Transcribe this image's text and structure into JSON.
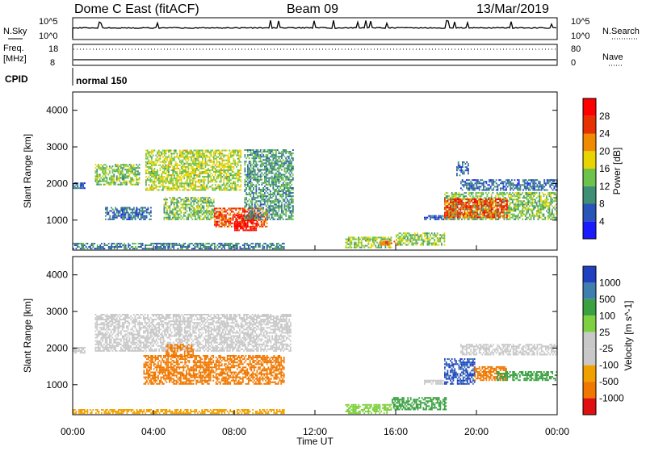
{
  "header": {
    "title": "Dome C East (fitACF)",
    "beam": "Beam 09",
    "date": "13/Mar/2019"
  },
  "aux": {
    "nsky_label": "N.Sky",
    "nsky_top": "10^5",
    "nsky_bottom": "10^0",
    "nsearch_label": "N.Search",
    "nsearch_top": "10^5",
    "nsearch_bottom": "10^0",
    "freq_label": "Freq.",
    "freq_unit": "[MHz]",
    "freq_top": "18",
    "freq_bottom": "8",
    "nave_label": "Nave",
    "nave_top": "80",
    "nave_bottom": "0",
    "cpid_label": "CPID",
    "cpid_value": "normal 150"
  },
  "chart_data": [
    {
      "type": "heatmap",
      "name": "power",
      "ylabel": "Slant Range [km]",
      "ylim": [
        180,
        4500
      ],
      "xlim": [
        "00:00",
        "24:00"
      ],
      "y_ticks": [
        "1000",
        "2000",
        "3000",
        "4000"
      ],
      "colorbar_label": "Power [dB]",
      "colorbar_ticks": [
        "4",
        "8",
        "12",
        "16",
        "20",
        "24",
        "28"
      ],
      "colorbar_range": [
        0,
        30
      ],
      "colors": [
        "#1a1aff",
        "#2a55b8",
        "#3f8f74",
        "#6cc24a",
        "#e8d400",
        "#f08a00",
        "#e63200",
        "#ff0000"
      ],
      "regions": [
        {
          "t": [
            0.0,
            0.6
          ],
          "r": [
            1850,
            2000
          ],
          "v": 6
        },
        {
          "t": [
            1.1,
            3.3
          ],
          "r": [
            1950,
            2500
          ],
          "v": 13
        },
        {
          "t": [
            1.6,
            3.9
          ],
          "r": [
            1000,
            1350
          ],
          "v": 7
        },
        {
          "t": [
            3.6,
            8.3
          ],
          "r": [
            1800,
            2900
          ],
          "v": 15
        },
        {
          "t": [
            4.5,
            7.0
          ],
          "r": [
            1000,
            1600
          ],
          "v": 13
        },
        {
          "t": [
            7.0,
            9.6
          ],
          "r": [
            800,
            1300
          ],
          "v": 24
        },
        {
          "t": [
            8.0,
            9.1
          ],
          "r": [
            700,
            1150
          ],
          "v": 29
        },
        {
          "t": [
            8.5,
            10.9
          ],
          "r": [
            1000,
            2900
          ],
          "v": 10
        },
        {
          "t": [
            0.0,
            10.5
          ],
          "r": [
            200,
            380
          ],
          "v": 8
        },
        {
          "t": [
            13.5,
            15.8
          ],
          "r": [
            230,
            520
          ],
          "v": 14
        },
        {
          "t": [
            15.2,
            16.3
          ],
          "r": [
            300,
            400
          ],
          "v": 22
        },
        {
          "t": [
            16.0,
            18.4
          ],
          "r": [
            300,
            650
          ],
          "v": 14
        },
        {
          "t": [
            17.4,
            18.5
          ],
          "r": [
            1000,
            1120
          ],
          "v": 5
        },
        {
          "t": [
            18.4,
            24.0
          ],
          "r": [
            1000,
            1750
          ],
          "v": 13
        },
        {
          "t": [
            18.4,
            21.5
          ],
          "r": [
            1050,
            1550
          ],
          "v": 24
        },
        {
          "t": [
            19.2,
            24.0
          ],
          "r": [
            1800,
            2100
          ],
          "v": 7
        },
        {
          "t": [
            19.0,
            19.6
          ],
          "r": [
            2200,
            2600
          ],
          "v": 7
        }
      ]
    },
    {
      "type": "heatmap",
      "name": "velocity",
      "ylabel": "Slant Range [km]",
      "xlabel": "Time UT",
      "ylim": [
        180,
        4500
      ],
      "xlim": [
        "00:00",
        "24:00"
      ],
      "x_ticks": [
        "00:00",
        "04:00",
        "08:00",
        "12:00",
        "16:00",
        "20:00",
        "00:00"
      ],
      "y_ticks": [
        "1000",
        "2000",
        "3000",
        "4000"
      ],
      "colorbar_label": "Velocity [m s^-1]",
      "colorbar_ticks": [
        "1000",
        "500",
        "100",
        "25",
        "-25",
        "-100",
        "-500",
        "-1000"
      ],
      "colors": [
        "#2040c0",
        "#3f7fb0",
        "#3aa040",
        "#7fd040",
        "#c8c8c8",
        "#c8c8c8",
        "#f0a000",
        "#f07800",
        "#e01010"
      ],
      "regions": [
        {
          "t": [
            0.0,
            0.6
          ],
          "r": [
            1850,
            2000
          ],
          "v": 0
        },
        {
          "t": [
            1.1,
            10.8
          ],
          "r": [
            1900,
            2900
          ],
          "v": 0
        },
        {
          "t": [
            3.5,
            10.5
          ],
          "r": [
            1000,
            1800
          ],
          "v": -300
        },
        {
          "t": [
            4.6,
            6.0
          ],
          "r": [
            1750,
            2100
          ],
          "v": -300
        },
        {
          "t": [
            0.0,
            10.5
          ],
          "r": [
            200,
            320
          ],
          "v": -50
        },
        {
          "t": [
            13.5,
            15.8
          ],
          "r": [
            200,
            450
          ],
          "v": 60
        },
        {
          "t": [
            15.8,
            18.5
          ],
          "r": [
            300,
            650
          ],
          "v": 150
        },
        {
          "t": [
            17.4,
            18.5
          ],
          "r": [
            1000,
            1100
          ],
          "v": 0
        },
        {
          "t": [
            18.4,
            19.9
          ],
          "r": [
            1000,
            1700
          ],
          "v": 800
        },
        {
          "t": [
            19.9,
            21.5
          ],
          "r": [
            1100,
            1500
          ],
          "v": -300
        },
        {
          "t": [
            21.0,
            24.0
          ],
          "r": [
            1100,
            1350
          ],
          "v": 150
        },
        {
          "t": [
            19.2,
            24.0
          ],
          "r": [
            1800,
            2100
          ],
          "v": 0
        }
      ]
    }
  ]
}
